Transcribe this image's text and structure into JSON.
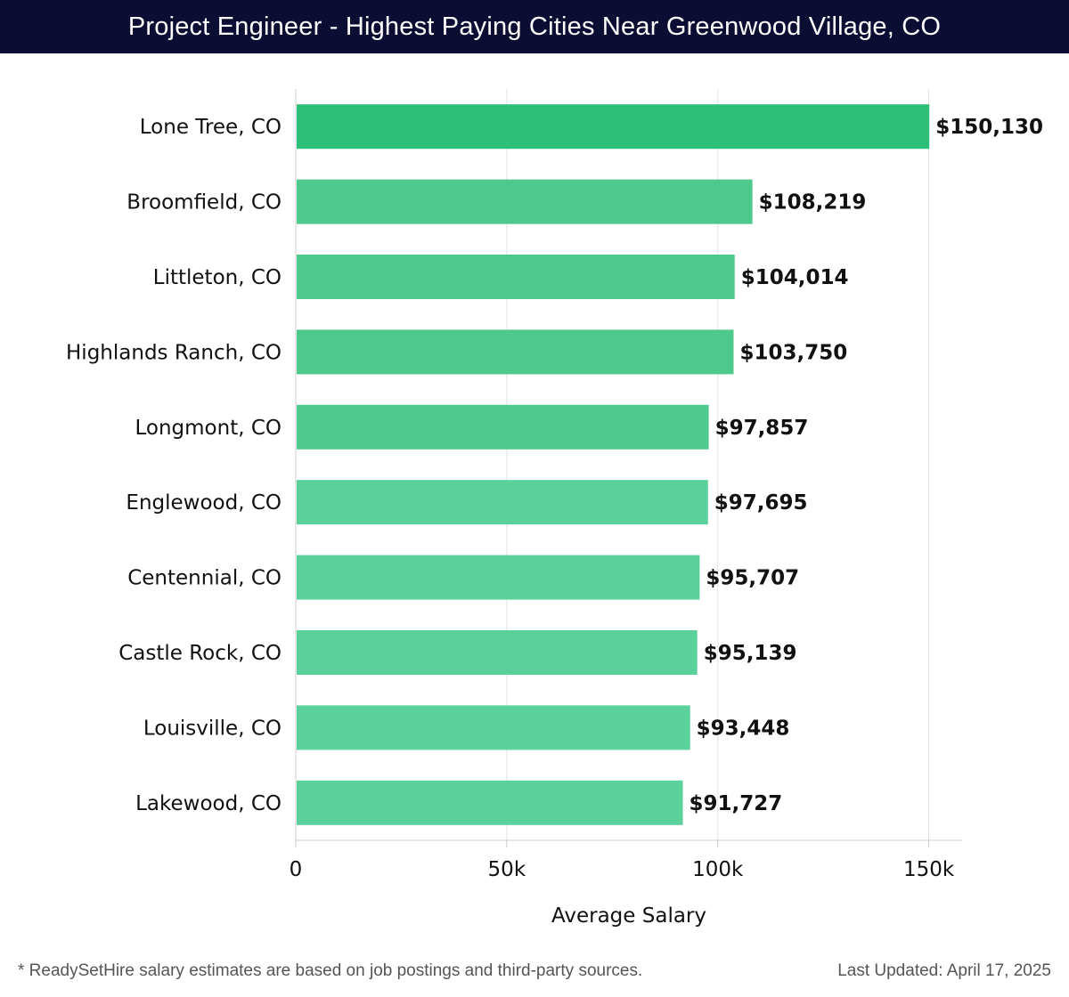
{
  "header": {
    "title": "Project Engineer - Highest Paying Cities Near Greenwood Village, CO"
  },
  "chart_data": {
    "type": "bar",
    "orientation": "horizontal",
    "title": "Project Engineer - Highest Paying Cities Near Greenwood Village, CO",
    "xlabel": "Average Salary",
    "ylabel": "",
    "xlim": [
      0,
      157900
    ],
    "xticks": [
      {
        "value": 0,
        "label": "0"
      },
      {
        "value": 50000,
        "label": "50k"
      },
      {
        "value": 100000,
        "label": "100k"
      },
      {
        "value": 150000,
        "label": "150k"
      }
    ],
    "grid": true,
    "categories": [
      "Lone Tree, CO",
      "Broomfield, CO",
      "Littleton, CO",
      "Highlands Ranch, CO",
      "Longmont, CO",
      "Englewood, CO",
      "Centennial, CO",
      "Castle Rock, CO",
      "Louisville, CO",
      "Lakewood, CO"
    ],
    "values": [
      150130,
      108219,
      104014,
      103750,
      97857,
      97695,
      95707,
      95139,
      93448,
      91727
    ],
    "value_labels": [
      "$150,130",
      "$108,219",
      "$104,014",
      "$103,750",
      "$97,857",
      "$97,695",
      "$95,707",
      "$95,139",
      "$93,448",
      "$91,727"
    ],
    "colors": {
      "highlight": "#2bbf77",
      "bar_top": "#4ec98c",
      "bar_bottom": "#5ad09b",
      "grid": "#e2e2e2",
      "axis": "#cccccc",
      "text": "#111111"
    }
  },
  "footer": {
    "note": "* ReadySetHire salary estimates are based on job postings and third-party sources.",
    "updated": "Last Updated: April 17, 2025"
  }
}
